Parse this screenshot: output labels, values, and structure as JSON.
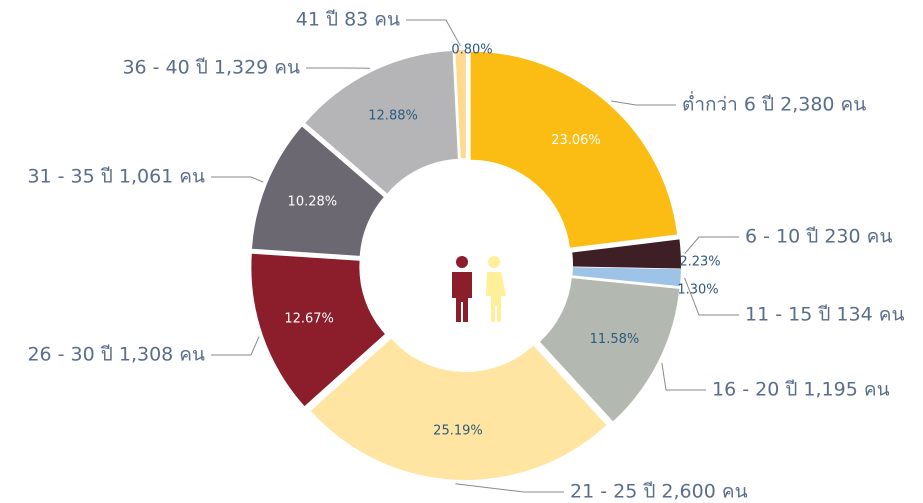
{
  "chart_data": {
    "type": "donut",
    "categories": [
      "ต่ำกว่า 6 ปี 2,380 คน",
      "6 - 10 ปี 230 คน",
      "11 - 15 ปี 134 คน",
      "16 - 20 ปี 1,195 คน",
      "21 - 25 ปี 2,600 คน",
      "26 - 30 ปี 1,308 คน",
      "31 - 35 ปี 1,061 คน",
      "36 - 40 ปี 1,329 คน",
      "41 ปี 83 คน"
    ],
    "values": [
      23.06,
      2.23,
      1.3,
      11.58,
      25.19,
      12.67,
      10.28,
      12.88,
      0.8
    ],
    "value_labels": [
      "23.06%",
      "2.23%",
      "1.30%",
      "11.58%",
      "25.19%",
      "12.67%",
      "10.28%",
      "12.88%",
      "0.80%"
    ],
    "colors": [
      "#fbbc13",
      "#3e1f26",
      "#9dc3e6",
      "#b3b9b1",
      "#ffe5a1",
      "#8c1d2b",
      "#6b6871",
      "#b5b5b8",
      "#ffd98f"
    ]
  }
}
